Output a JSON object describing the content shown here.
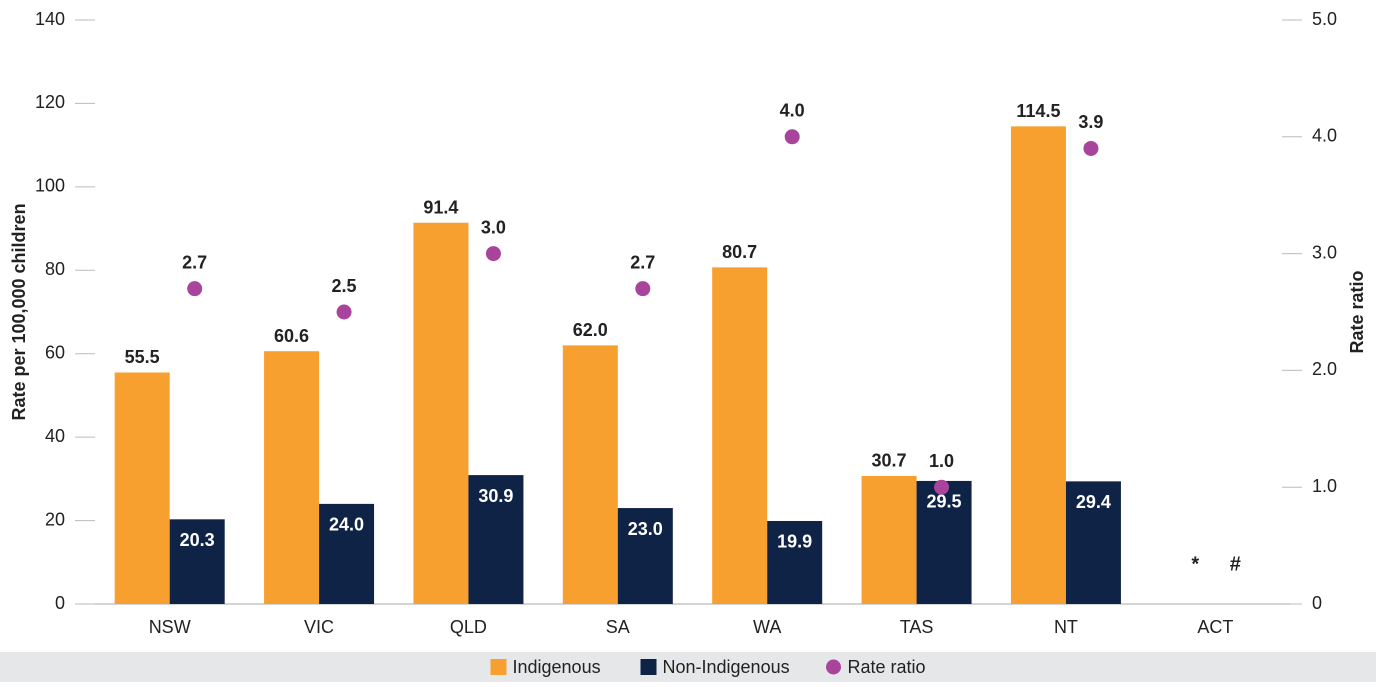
{
  "chart_data": {
    "type": "bar",
    "y_label": "Rate per 100,000 children",
    "y2_label": "Rate ratio",
    "categories": [
      "NSW",
      "VIC",
      "QLD",
      "SA",
      "WA",
      "TAS",
      "NT",
      "ACT"
    ],
    "series": [
      {
        "name": "Indigenous",
        "color": "#f7a030",
        "type": "bar",
        "values": [
          55.5,
          60.6,
          91.4,
          62.0,
          80.7,
          30.7,
          114.5,
          null
        ],
        "value_labels": [
          "55.5",
          "60.6",
          "91.4",
          "62.0",
          "80.7",
          "30.7",
          "114.5",
          null
        ]
      },
      {
        "name": "Non-Indigenous",
        "color": "#0f2346",
        "type": "bar",
        "values": [
          20.3,
          24.0,
          30.9,
          23.0,
          19.9,
          29.5,
          29.4,
          null
        ],
        "value_labels": [
          "20.3",
          "24.0",
          "30.9",
          "23.0",
          "19.9",
          "29.5",
          "29.4",
          null
        ]
      },
      {
        "name": "Rate ratio",
        "color": "#a8449c",
        "type": "scatter",
        "axis": "y2",
        "values": [
          2.7,
          2.5,
          3.0,
          2.7,
          4.0,
          1.0,
          3.9,
          null
        ],
        "value_labels": [
          "2.7",
          "2.5",
          "3.0",
          "2.7",
          "4.0",
          "1.0",
          "3.9",
          null
        ]
      }
    ],
    "annotations": [
      "*",
      "#"
    ],
    "ylim": [
      0,
      140
    ],
    "yticks": [
      0,
      20,
      40,
      60,
      80,
      100,
      120,
      140
    ],
    "y2lim": [
      0,
      5
    ],
    "y2ticks": [
      0,
      {
        "value": 1,
        "label": "1.0"
      },
      {
        "value": 2,
        "label": "2.0"
      },
      {
        "value": 3,
        "label": "3.0"
      },
      {
        "value": 4,
        "label": "4.0"
      },
      {
        "value": 5,
        "label": "5.0"
      }
    ],
    "legend": "bottom"
  }
}
